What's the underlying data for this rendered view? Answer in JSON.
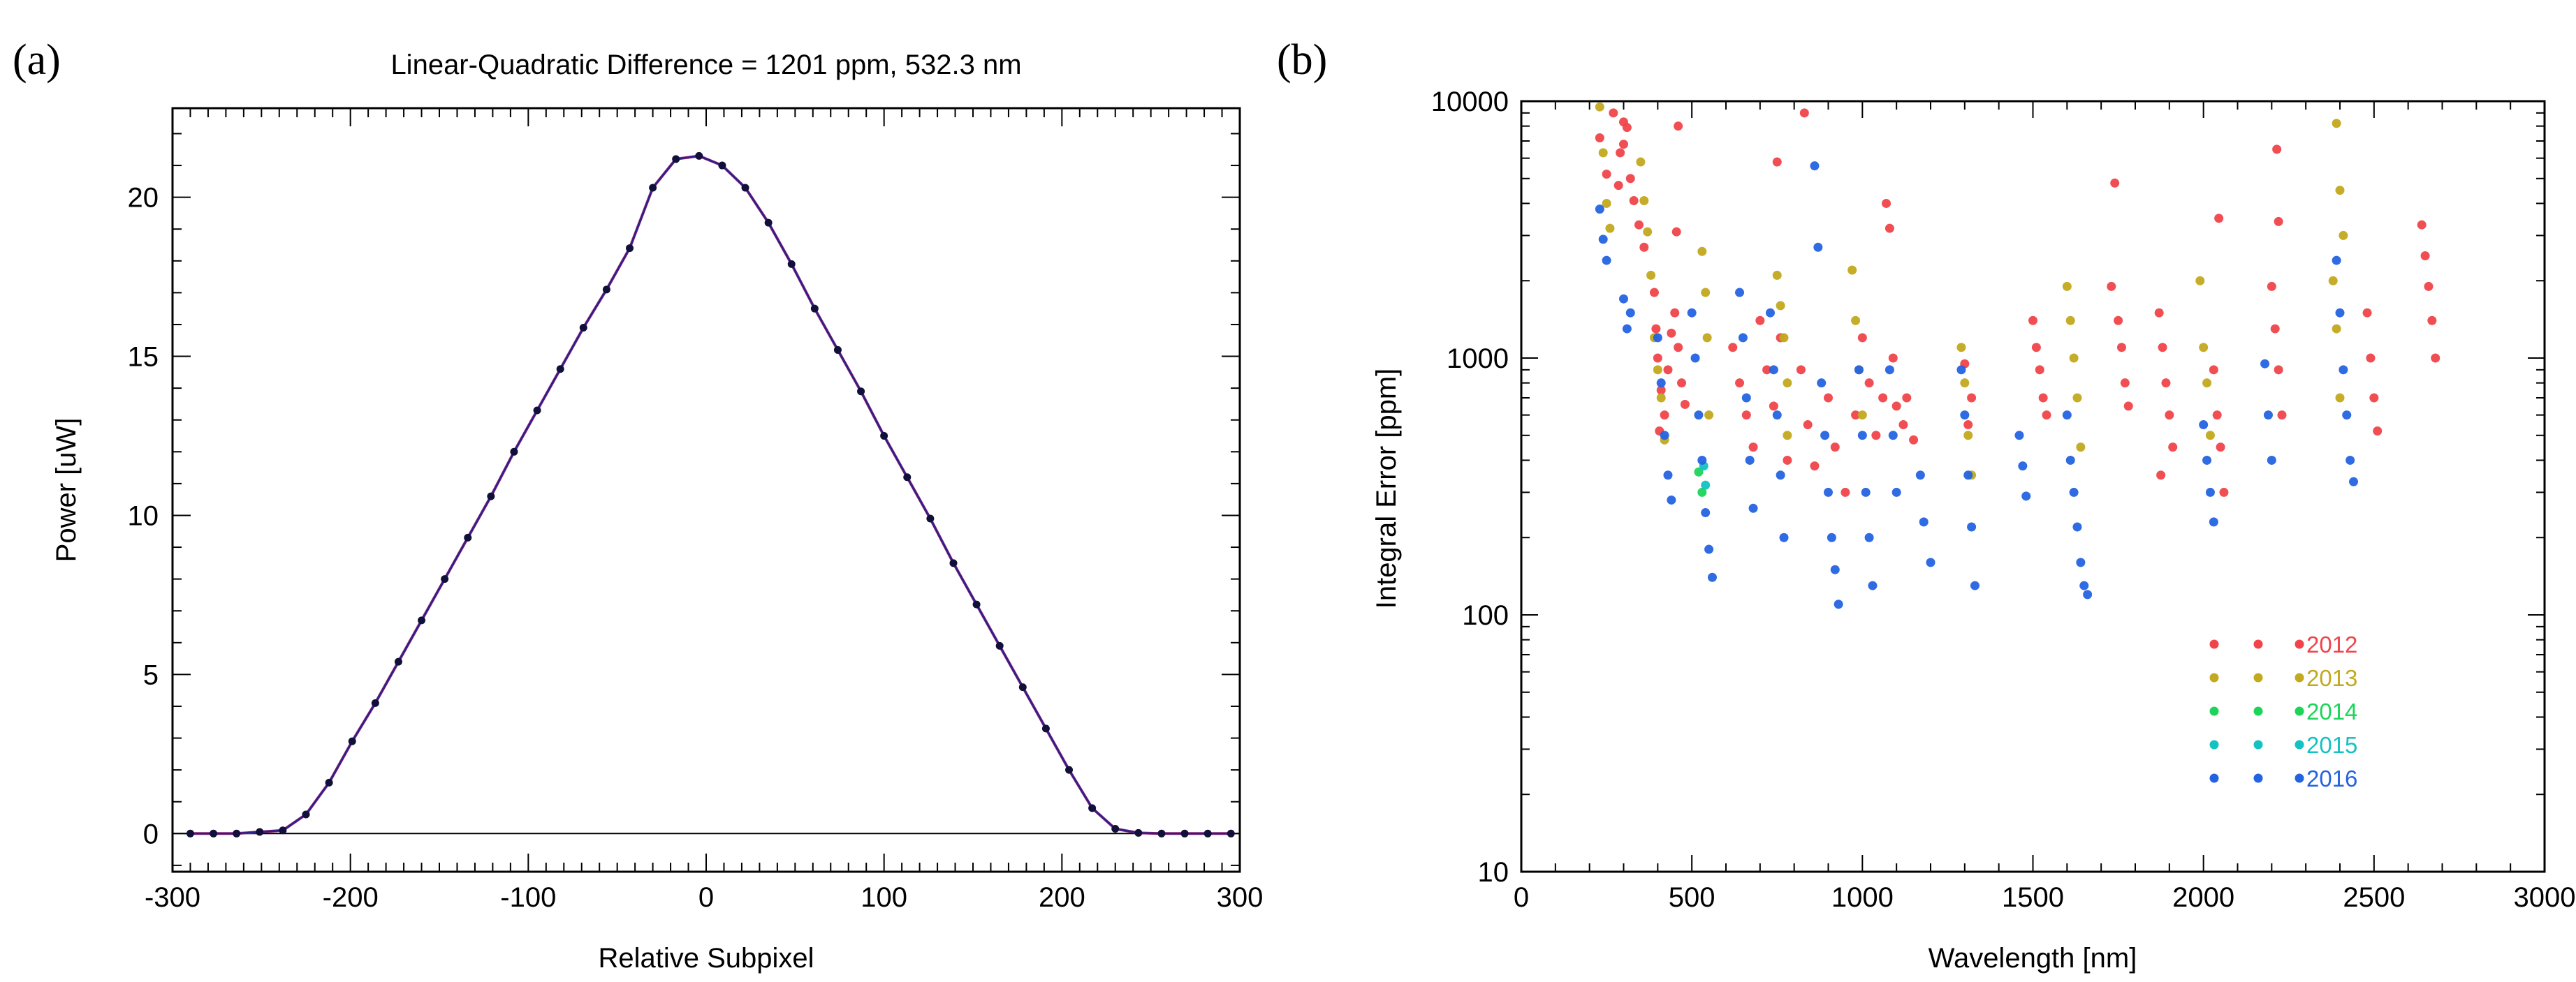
{
  "chart_data": [
    {
      "panel": "(a)",
      "type": "line",
      "title": "Linear-Quadratic Difference = 1201 ppm, 532.3 nm",
      "xlabel": "Relative Subpixel",
      "ylabel": "Power [uW]",
      "xlim": [
        -300,
        300
      ],
      "ylim": [
        -1.2,
        22.8
      ],
      "xticks": [
        "-300",
        "-200",
        "-100",
        "0",
        "100",
        "200",
        "300"
      ],
      "yticks": [
        "0",
        "5",
        "10",
        "15",
        "20"
      ],
      "grid": false,
      "colors": {
        "line": "#2b1f8f",
        "fit": "#9b2a6e",
        "points": "#10103a",
        "zero": "#000000"
      },
      "series": [
        {
          "x": [
            -290,
            -277,
            -264,
            -251,
            -238,
            -225,
            -212,
            -199,
            -186,
            -173,
            -160,
            -147,
            -134,
            -121,
            -108,
            -95,
            -82,
            -69,
            -56,
            -43,
            -30,
            -17,
            -4,
            9,
            22,
            35,
            48,
            61,
            74,
            87,
            100,
            113,
            126,
            139,
            152,
            165,
            178,
            191,
            204,
            217,
            230,
            243,
            256,
            269,
            282,
            295
          ],
          "values": [
            0,
            0,
            0,
            0.05,
            0.1,
            0.6,
            1.6,
            2.9,
            4.1,
            5.4,
            6.7,
            8.0,
            9.3,
            10.6,
            12.0,
            13.3,
            14.6,
            15.9,
            17.1,
            18.4,
            20.3,
            21.2,
            21.3,
            21.0,
            20.3,
            19.2,
            17.9,
            16.5,
            15.2,
            13.9,
            12.5,
            11.2,
            9.9,
            8.5,
            7.2,
            5.9,
            4.6,
            3.3,
            2.0,
            0.8,
            0.15,
            0.02,
            0,
            0,
            0,
            0
          ]
        }
      ]
    },
    {
      "panel": "(b)",
      "type": "scatter",
      "title": "",
      "xlabel": "Wavelength [nm]",
      "ylabel": "Integral Error [ppm]",
      "xlim": [
        0,
        3000
      ],
      "ylim": [
        10,
        10000
      ],
      "yscale": "log",
      "xticks": [
        "0",
        "500",
        "1000",
        "1500",
        "2000",
        "2500",
        "3000"
      ],
      "yticks": [
        "10",
        "100",
        "1000",
        "10000"
      ],
      "grid": false,
      "legend_placement": "lower-right",
      "series": [
        {
          "name": "2012",
          "color": "#f0444a",
          "points": [
            [
              230,
              7200
            ],
            [
              250,
              5200
            ],
            [
              270,
              9000
            ],
            [
              290,
              6300
            ],
            [
              300,
              6800
            ],
            [
              310,
              7900
            ],
            [
              320,
              5000
            ],
            [
              330,
              4100
            ],
            [
              345,
              3300
            ],
            [
              360,
              2700
            ],
            [
              300,
              8300
            ],
            [
              285,
              4700
            ],
            [
              390,
              1800
            ],
            [
              400,
              1000
            ],
            [
              410,
              750
            ],
            [
              420,
              600
            ],
            [
              430,
              900
            ],
            [
              440,
              1250
            ],
            [
              450,
              1500
            ],
            [
              460,
              1100
            ],
            [
              470,
              800
            ],
            [
              480,
              660
            ],
            [
              395,
              1300
            ],
            [
              405,
              520
            ],
            [
              455,
              3100
            ],
            [
              460,
              8000
            ],
            [
              620,
              1100
            ],
            [
              640,
              800
            ],
            [
              660,
              600
            ],
            [
              680,
              450
            ],
            [
              700,
              1400
            ],
            [
              720,
              900
            ],
            [
              740,
              650
            ],
            [
              750,
              5800
            ],
            [
              760,
              1200
            ],
            [
              780,
              400
            ],
            [
              820,
              900
            ],
            [
              840,
              550
            ],
            [
              860,
              380
            ],
            [
              830,
              9000
            ],
            [
              900,
              700
            ],
            [
              920,
              450
            ],
            [
              950,
              300
            ],
            [
              980,
              600
            ],
            [
              1000,
              1200
            ],
            [
              1020,
              800
            ],
            [
              1040,
              500
            ],
            [
              1060,
              700
            ],
            [
              1070,
              4000
            ],
            [
              1080,
              3200
            ],
            [
              1090,
              1000
            ],
            [
              1100,
              650
            ],
            [
              1120,
              550
            ],
            [
              1130,
              700
            ],
            [
              1150,
              480
            ],
            [
              1300,
              950
            ],
            [
              1310,
              550
            ],
            [
              1320,
              700
            ],
            [
              1500,
              1400
            ],
            [
              1510,
              1100
            ],
            [
              1520,
              900
            ],
            [
              1530,
              700
            ],
            [
              1540,
              600
            ],
            [
              1730,
              1900
            ],
            [
              1750,
              1400
            ],
            [
              1760,
              1100
            ],
            [
              1770,
              800
            ],
            [
              1780,
              650
            ],
            [
              1740,
              4800
            ],
            [
              1870,
              1500
            ],
            [
              1880,
              1100
            ],
            [
              1890,
              800
            ],
            [
              1900,
              600
            ],
            [
              1910,
              450
            ],
            [
              1875,
              350
            ],
            [
              2030,
              900
            ],
            [
              2040,
              600
            ],
            [
              2050,
              450
            ],
            [
              2060,
              300
            ],
            [
              2045,
              3500
            ],
            [
              2200,
              1900
            ],
            [
              2210,
              1300
            ],
            [
              2220,
              900
            ],
            [
              2230,
              600
            ],
            [
              2215,
              6500
            ],
            [
              2220,
              3400
            ],
            [
              2480,
              1500
            ],
            [
              2490,
              1000
            ],
            [
              2500,
              700
            ],
            [
              2510,
              520
            ],
            [
              2640,
              3300
            ],
            [
              2650,
              2500
            ],
            [
              2660,
              1900
            ],
            [
              2670,
              1400
            ],
            [
              2680,
              1000
            ]
          ]
        },
        {
          "name": "2013",
          "color": "#c2a91d",
          "points": [
            [
              230,
              9500
            ],
            [
              240,
              6300
            ],
            [
              250,
              4000
            ],
            [
              260,
              3200
            ],
            [
              350,
              5800
            ],
            [
              360,
              4100
            ],
            [
              370,
              3100
            ],
            [
              380,
              2100
            ],
            [
              390,
              1200
            ],
            [
              400,
              900
            ],
            [
              410,
              700
            ],
            [
              420,
              480
            ],
            [
              530,
              2600
            ],
            [
              540,
              1800
            ],
            [
              545,
              1200
            ],
            [
              550,
              600
            ],
            [
              750,
              2100
            ],
            [
              760,
              1600
            ],
            [
              770,
              1200
            ],
            [
              780,
              800
            ],
            [
              780,
              500
            ],
            [
              970,
              2200
            ],
            [
              980,
              1400
            ],
            [
              990,
              900
            ],
            [
              1000,
              600
            ],
            [
              1290,
              1100
            ],
            [
              1300,
              800
            ],
            [
              1310,
              500
            ],
            [
              1320,
              350
            ],
            [
              1600,
              1900
            ],
            [
              1610,
              1400
            ],
            [
              1620,
              1000
            ],
            [
              1630,
              700
            ],
            [
              1640,
              450
            ],
            [
              1990,
              2000
            ],
            [
              2000,
              1100
            ],
            [
              2010,
              800
            ],
            [
              2020,
              500
            ],
            [
              2390,
              8200
            ],
            [
              2400,
              4500
            ],
            [
              2410,
              3000
            ],
            [
              2380,
              2000
            ],
            [
              2390,
              1300
            ],
            [
              2400,
              700
            ]
          ]
        },
        {
          "name": "2014",
          "color": "#1cd45a",
          "points": [
            [
              520,
              360
            ],
            [
              530,
              300
            ]
          ]
        },
        {
          "name": "2015",
          "color": "#13c2c2",
          "points": [
            [
              535,
              380
            ],
            [
              540,
              320
            ]
          ]
        },
        {
          "name": "2016",
          "color": "#2463e0",
          "points": [
            [
              230,
              3800
            ],
            [
              240,
              2900
            ],
            [
              250,
              2400
            ],
            [
              300,
              1700
            ],
            [
              310,
              1300
            ],
            [
              320,
              1500
            ],
            [
              400,
              1200
            ],
            [
              410,
              800
            ],
            [
              420,
              500
            ],
            [
              430,
              350
            ],
            [
              440,
              280
            ],
            [
              500,
              1500
            ],
            [
              510,
              1000
            ],
            [
              520,
              600
            ],
            [
              530,
              400
            ],
            [
              540,
              250
            ],
            [
              550,
              180
            ],
            [
              560,
              140
            ],
            [
              640,
              1800
            ],
            [
              650,
              1200
            ],
            [
              660,
              700
            ],
            [
              670,
              400
            ],
            [
              680,
              260
            ],
            [
              730,
              1500
            ],
            [
              740,
              900
            ],
            [
              750,
              600
            ],
            [
              760,
              350
            ],
            [
              770,
              200
            ],
            [
              860,
              5600
            ],
            [
              870,
              2700
            ],
            [
              880,
              800
            ],
            [
              890,
              500
            ],
            [
              900,
              300
            ],
            [
              910,
              200
            ],
            [
              920,
              150
            ],
            [
              930,
              110
            ],
            [
              990,
              900
            ],
            [
              1000,
              500
            ],
            [
              1010,
              300
            ],
            [
              1020,
              200
            ],
            [
              1030,
              130
            ],
            [
              1080,
              900
            ],
            [
              1090,
              500
            ],
            [
              1100,
              300
            ],
            [
              1170,
              350
            ],
            [
              1180,
              230
            ],
            [
              1200,
              160
            ],
            [
              1290,
              900
            ],
            [
              1300,
              600
            ],
            [
              1310,
              350
            ],
            [
              1320,
              220
            ],
            [
              1330,
              130
            ],
            [
              1460,
              500
            ],
            [
              1470,
              380
            ],
            [
              1480,
              290
            ],
            [
              1600,
              600
            ],
            [
              1610,
              400
            ],
            [
              1620,
              300
            ],
            [
              1630,
              220
            ],
            [
              1640,
              160
            ],
            [
              1650,
              130
            ],
            [
              1660,
              120
            ],
            [
              2000,
              550
            ],
            [
              2010,
              400
            ],
            [
              2020,
              300
            ],
            [
              2030,
              230
            ],
            [
              2180,
              950
            ],
            [
              2190,
              600
            ],
            [
              2200,
              400
            ],
            [
              2390,
              2400
            ],
            [
              2400,
              1500
            ],
            [
              2410,
              900
            ],
            [
              2420,
              600
            ],
            [
              2430,
              400
            ],
            [
              2440,
              330
            ]
          ]
        }
      ]
    }
  ],
  "panel_tags": [
    "(a)",
    "(b)"
  ]
}
